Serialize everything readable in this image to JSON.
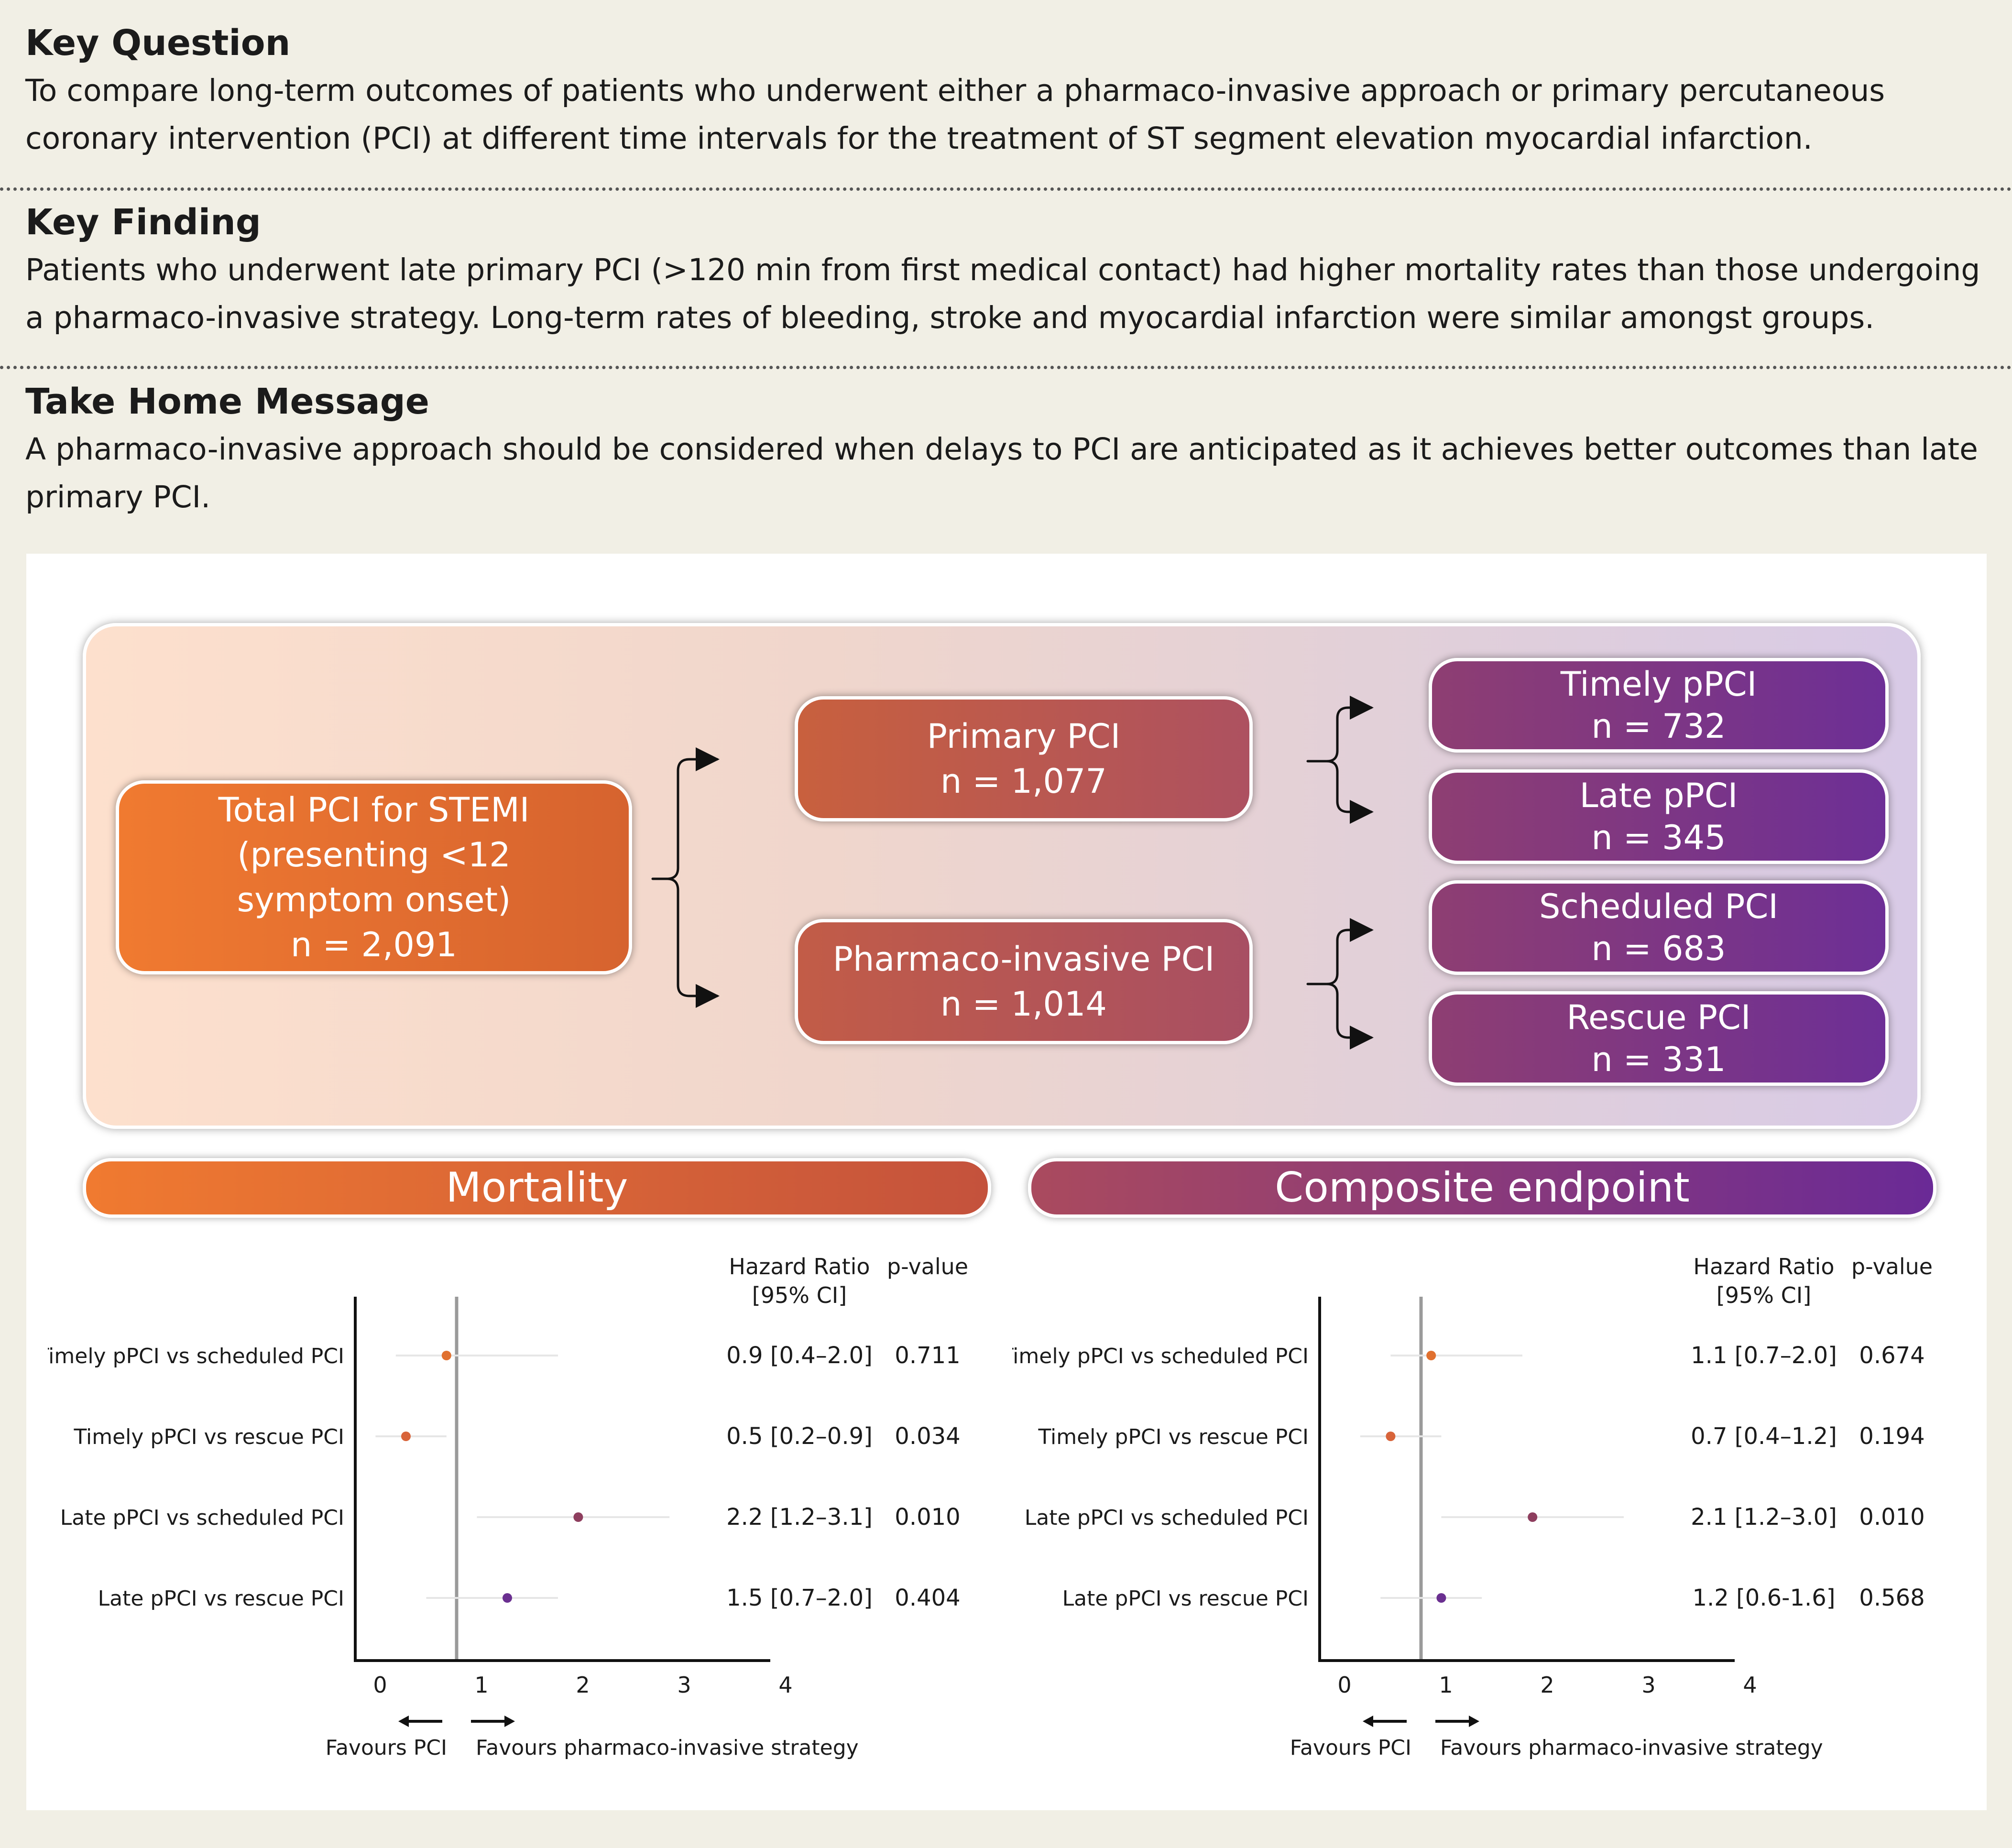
{
  "summary": {
    "key_question": {
      "heading": "Key Question",
      "text": "To compare long-term outcomes of patients who underwent either a pharmaco-invasive approach or primary percutaneous coronary intervention (PCI) at different time intervals for the treatment of ST segment elevation myocardial infarction."
    },
    "key_finding": {
      "heading": "Key Finding",
      "text": "Patients who underwent late primary PCI (>120 min from first medical contact) had higher mortality rates than those undergoing a pharmaco-invasive strategy. Long-term rates of bleeding, stroke and myocardial infarction were similar amongst groups."
    },
    "take_home": {
      "heading": "Take Home Message",
      "text": "A pharmaco-invasive approach should be considered when delays to PCI are anticipated as it achieves better outcomes than late primary PCI."
    }
  },
  "flow": {
    "total": {
      "line1": "Total PCI for STEMI",
      "line2": "(presenting <12",
      "line3": "symptom onset)",
      "n": "n = 2,091"
    },
    "primary": {
      "label": "Primary PCI",
      "n": "n = 1,077"
    },
    "pharmaco": {
      "label": "Pharmaco-invasive PCI",
      "n": "n = 1,014"
    },
    "timely": {
      "label": "Timely pPCI",
      "n": "n = 732"
    },
    "late": {
      "label": "Late pPCI",
      "n": "n = 345"
    },
    "scheduled": {
      "label": "Scheduled PCI",
      "n": "n = 683"
    },
    "rescue": {
      "label": "Rescue PCI",
      "n": "n = 331"
    }
  },
  "banners": {
    "mortality": "Mortality",
    "composite": "Composite endpoint"
  },
  "chart_data": [
    {
      "type": "scatter",
      "title": "Mortality",
      "col_hr_1": "Hazard Ratio",
      "col_hr_2": "[95% CI]",
      "col_p": "p-value",
      "xlim": [
        0,
        4
      ],
      "xticks": [
        "0",
        "1",
        "2",
        "3",
        "4"
      ],
      "reference_line": 1,
      "favours_left": "Favours PCI",
      "favours_right": "Favours pharmaco-invasive strategy",
      "rows": [
        {
          "label": "Timely pPCI vs scheduled PCI",
          "hr": 0.9,
          "lo": 0.4,
          "hi": 2.0,
          "hr_text": "0.9 [0.4–2.0]",
          "p": "0.711",
          "color": "#e0702f"
        },
        {
          "label": "Timely pPCI vs rescue PCI",
          "hr": 0.5,
          "lo": 0.2,
          "hi": 0.9,
          "hr_text": "0.5 [0.2–0.9]",
          "p": "0.034",
          "color": "#d8643a"
        },
        {
          "label": "Late pPCI vs scheduled PCI",
          "hr": 2.2,
          "lo": 1.2,
          "hi": 3.1,
          "hr_text": "2.2 [1.2–3.1]",
          "p": "0.010",
          "color": "#8e3e5e"
        },
        {
          "label": "Late pPCI vs rescue PCI",
          "hr": 1.5,
          "lo": 0.7,
          "hi": 2.0,
          "hr_text": "1.5 [0.7–2.0]",
          "p": "0.404",
          "color": "#6a2f90"
        }
      ]
    },
    {
      "type": "scatter",
      "title": "Composite endpoint",
      "col_hr_1": "Hazard Ratio",
      "col_hr_2": "[95% CI]",
      "col_p": "p-value",
      "xlim": [
        0,
        4
      ],
      "xticks": [
        "0",
        "1",
        "2",
        "3",
        "4"
      ],
      "reference_line": 1,
      "favours_left": "Favours PCI",
      "favours_right": "Favours pharmaco-invasive strategy",
      "rows": [
        {
          "label": "Timely pPCI vs scheduled PCI",
          "hr": 1.1,
          "lo": 0.7,
          "hi": 2.0,
          "hr_text": "1.1 [0.7–2.0]",
          "p": "0.674",
          "color": "#e0702f"
        },
        {
          "label": "Timely pPCI vs rescue PCI",
          "hr": 0.7,
          "lo": 0.4,
          "hi": 1.2,
          "hr_text": "0.7 [0.4–1.2]",
          "p": "0.194",
          "color": "#d8643a"
        },
        {
          "label": "Late pPCI vs scheduled PCI",
          "hr": 2.1,
          "lo": 1.2,
          "hi": 3.0,
          "hr_text": "2.1 [1.2–3.0]",
          "p": "0.010",
          "color": "#8e3e5e"
        },
        {
          "label": "Late pPCI vs rescue PCI",
          "hr": 1.2,
          "lo": 0.6,
          "hi": 1.6,
          "hr_text": "1.2 [0.6-1.6]",
          "p": "0.568",
          "color": "#6a2f90"
        }
      ]
    }
  ]
}
